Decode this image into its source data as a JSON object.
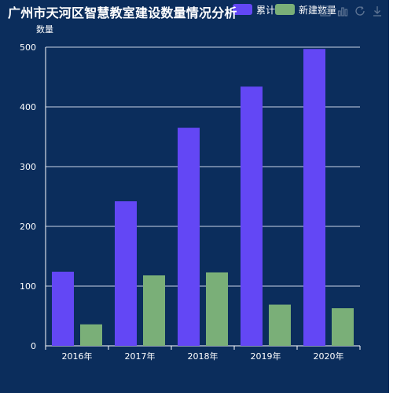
{
  "title": "广州市天河区智慧教室建设数量情况分析",
  "chart_data": {
    "type": "bar",
    "title": "广州市天河区智慧教室建设数量情况分析",
    "ylabel": "数量",
    "xlabel": "",
    "categories": [
      "2016年",
      "2017年",
      "2018年",
      "2019年",
      "2020年"
    ],
    "ylim": [
      0,
      500
    ],
    "yticks": [
      0,
      100,
      200,
      300,
      400,
      500
    ],
    "grid": true,
    "legend_position": "top-right",
    "series": [
      {
        "name": "累计数量",
        "color": "#6347f5",
        "values": [
          124,
          242,
          365,
          434,
          497
        ]
      },
      {
        "name": "新建数量",
        "color": "#7aaf78",
        "values": [
          36,
          118,
          123,
          69,
          63
        ]
      }
    ]
  },
  "colors": {
    "background": "#0b2d5c",
    "text": "#ffffff",
    "grid": "#c8d2e6",
    "toolbox": "#5f7594"
  },
  "toolbox": {
    "icons": [
      "data-view-icon",
      "line-chart-icon",
      "refresh-icon",
      "download-icon"
    ]
  }
}
